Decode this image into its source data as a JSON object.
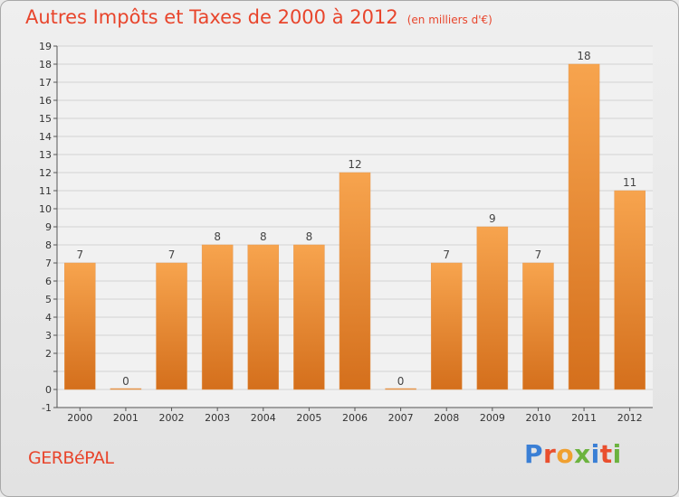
{
  "header": {
    "title": "Autres Impôts et Taxes de 2000 à 2012",
    "subtitle": "(en milliers d'€)"
  },
  "footer": {
    "town": "GERBéPAL",
    "logo": "Proxiti"
  },
  "colors": {
    "accent": "#e8452c",
    "bar_top": "#f7a44e",
    "bar_bottom": "#d46f1c"
  },
  "chart_data": {
    "type": "bar",
    "title": "Autres Impôts et Taxes de 2000 à 2012",
    "subtitle": "(en milliers d'€)",
    "categories": [
      "2000",
      "2001",
      "2002",
      "2003",
      "2004",
      "2005",
      "2006",
      "2007",
      "2008",
      "2009",
      "2010",
      "2011",
      "2012"
    ],
    "values": [
      7,
      0,
      7,
      8,
      8,
      8,
      12,
      0,
      7,
      9,
      7,
      18,
      11
    ],
    "data_labels": [
      "7",
      "0",
      "7",
      "8",
      "8",
      "8",
      "12",
      "0",
      "7",
      "9",
      "7",
      "18",
      "11"
    ],
    "ylim": [
      -1,
      19
    ],
    "yticks": [
      -1,
      0,
      1,
      2,
      3,
      4,
      5,
      6,
      7,
      8,
      9,
      10,
      11,
      12,
      13,
      14,
      15,
      16,
      17,
      18,
      19
    ],
    "ytick_labels": [
      "-1",
      "0",
      "",
      "2",
      "3",
      "4",
      "5",
      "6",
      "7",
      "8",
      "9",
      "10",
      "11",
      "12",
      "13",
      "14",
      "15",
      "16",
      "17",
      "18",
      "19"
    ],
    "grid": true,
    "legend": "none"
  }
}
